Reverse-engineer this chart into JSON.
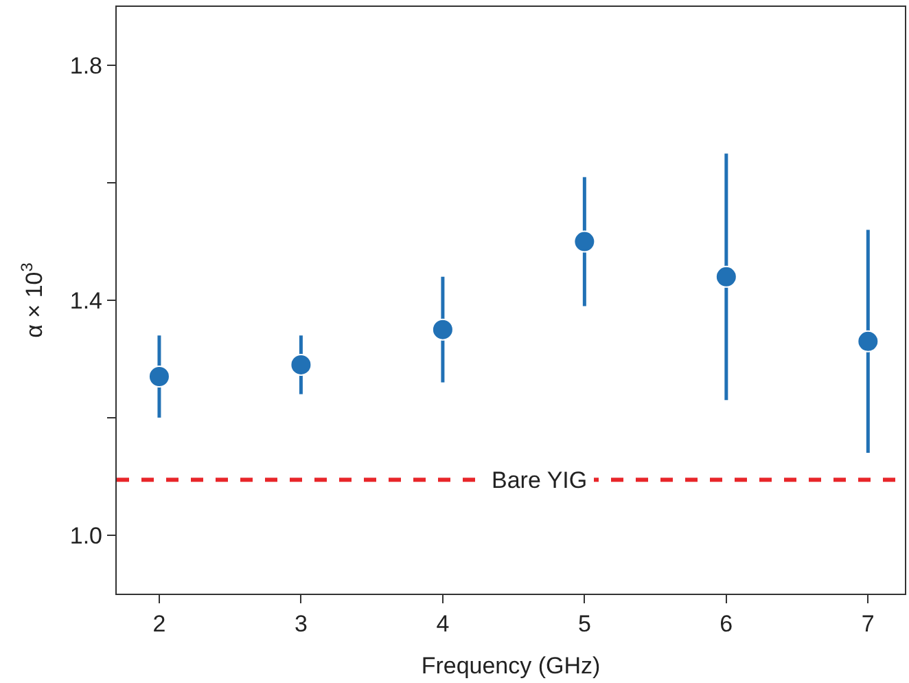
{
  "chart_data": {
    "type": "scatter",
    "xlabel": "Frequency (GHz)",
    "ylabel": "α × 10$^{3}$",
    "x": [
      2,
      3,
      4,
      5,
      6,
      7
    ],
    "series": [
      {
        "color": "#2171b5",
        "values": [
          1.27,
          1.29,
          1.35,
          1.5,
          1.44,
          1.33
        ],
        "errors": [
          [
            1.2,
            1.34
          ],
          [
            1.24,
            1.34
          ],
          [
            1.26,
            1.44
          ],
          [
            1.39,
            1.61
          ],
          [
            1.23,
            1.65
          ],
          [
            1.14,
            1.52
          ]
        ]
      }
    ],
    "xlim": [
      1.7,
      7.26
    ],
    "ylim": [
      0.9,
      1.9
    ],
    "xticks": [
      2,
      3,
      4,
      5,
      6,
      7
    ],
    "yticks": [
      {
        "value": 1.0,
        "label": "1.0"
      },
      {
        "value": 1.2,
        "label": null
      },
      {
        "value": 1.4,
        "label": "1.4"
      },
      {
        "value": 1.6,
        "label": null
      },
      {
        "value": 1.8,
        "label": "1.8"
      }
    ],
    "ref_lines": [
      {
        "axis": "y",
        "value": 1.094,
        "label": "Bare YIG",
        "color": "#e8262a",
        "line_style": "dashed"
      }
    ],
    "marker": "circle",
    "grid": false,
    "legend": false
  }
}
